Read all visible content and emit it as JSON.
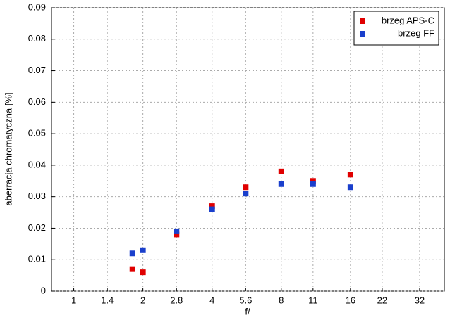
{
  "chart_data": {
    "type": "scatter",
    "xlabel": "f/",
    "ylabel": "aberracja chromatyczna [%]",
    "x": [
      1.8,
      2,
      2.8,
      4,
      5.6,
      8,
      11,
      16
    ],
    "series": [
      {
        "name": "brzeg APS-C",
        "color": "#e00000",
        "values": [
          0.007,
          0.006,
          0.018,
          0.027,
          0.033,
          0.038,
          0.035,
          0.037
        ]
      },
      {
        "name": "brzeg FF",
        "color": "#1a3fcc",
        "values": [
          0.012,
          0.013,
          0.019,
          0.026,
          0.031,
          0.034,
          0.034,
          0.033
        ]
      }
    ],
    "xscale": "log",
    "xlim": [
      0.8,
      41
    ],
    "xticks": [
      1,
      1.4,
      2,
      2.8,
      4,
      5.6,
      8,
      11,
      16,
      22,
      32
    ],
    "ylim": [
      0,
      0.09
    ],
    "yticks": [
      0,
      0.01,
      0.02,
      0.03,
      0.04,
      0.05,
      0.06,
      0.07,
      0.08,
      0.09
    ],
    "grid": true,
    "legend": "upper right"
  }
}
